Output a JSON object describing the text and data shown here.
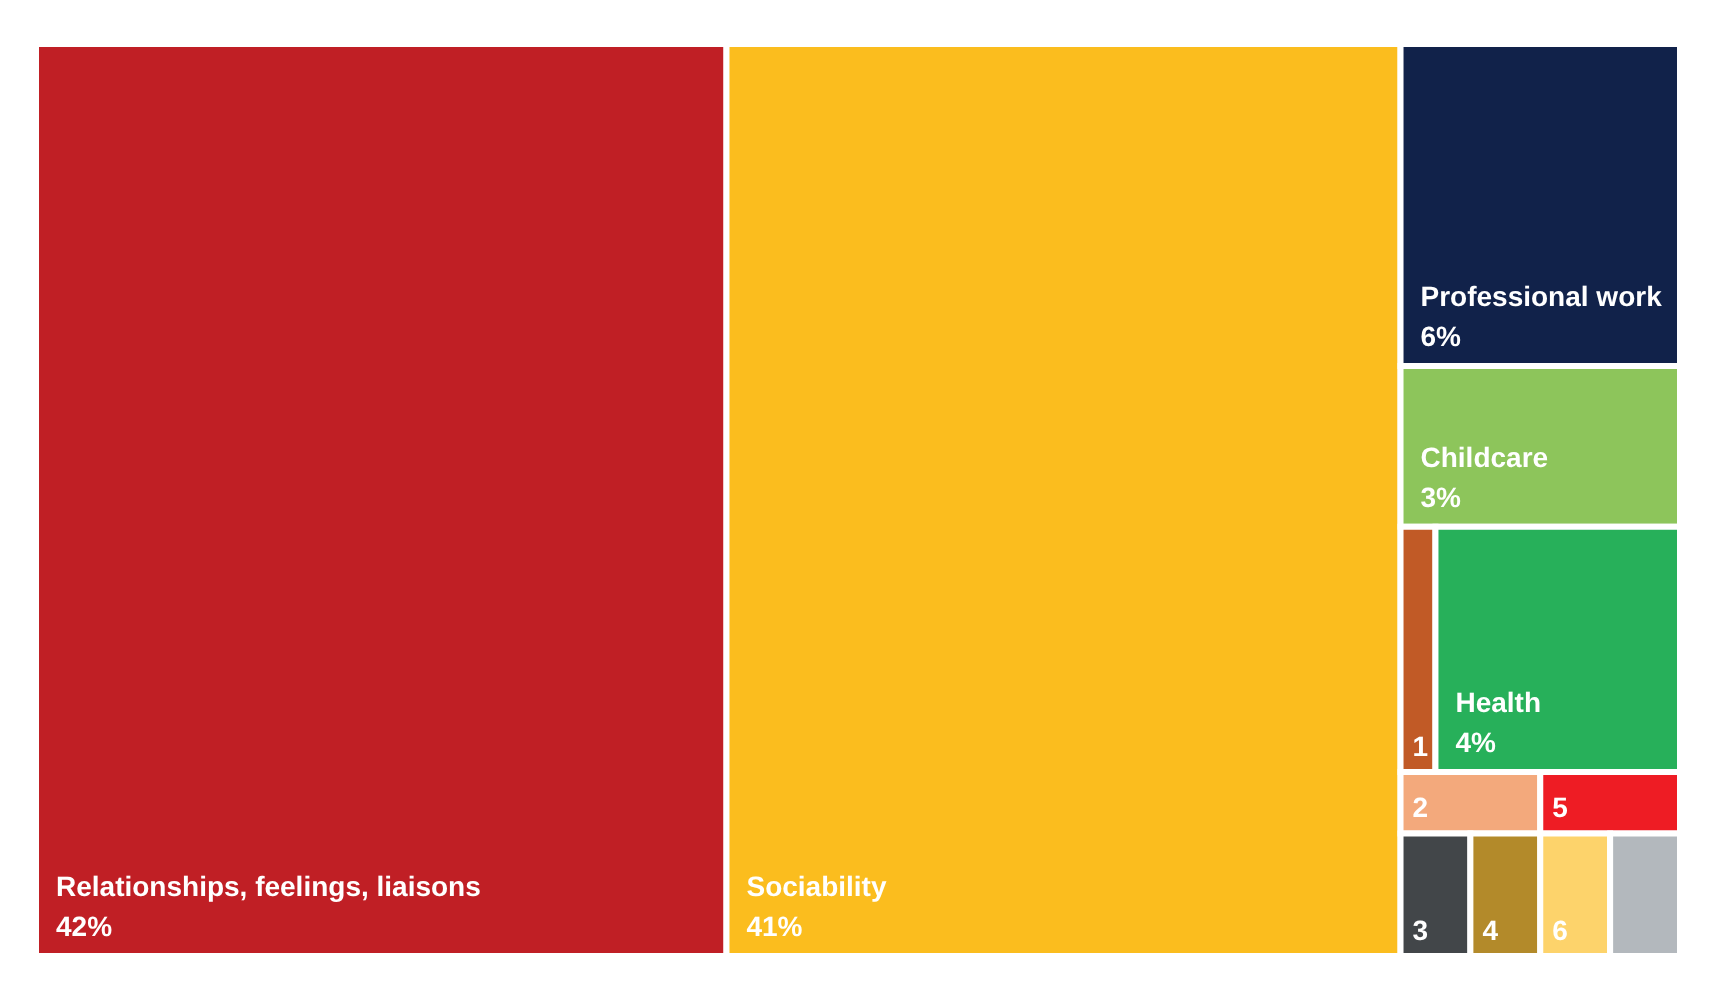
{
  "chart_data": {
    "type": "other",
    "categories": [
      "Relationships, feelings, liaisons",
      "Sociability",
      "Professional work",
      "Childcare",
      "1",
      "Health",
      "2",
      "3",
      "4",
      "5",
      "6",
      null
    ],
    "values": [
      42,
      41,
      6,
      3,
      null,
      4,
      null,
      null,
      null,
      null,
      null,
      null
    ],
    "value_labels": [
      "42%",
      "41%",
      "6%",
      "3%",
      null,
      "4%",
      null,
      null,
      null,
      null,
      null,
      null
    ],
    "colors": [
      "#c01f25",
      "#fbbd1e",
      "#11224a",
      "#8dc55b",
      "#c15a26",
      "#27b05a",
      "#f3a97c",
      "#424649",
      "#b38a2a",
      "#ee1c24",
      "#fdd36b",
      "#b3b8bd"
    ]
  }
}
